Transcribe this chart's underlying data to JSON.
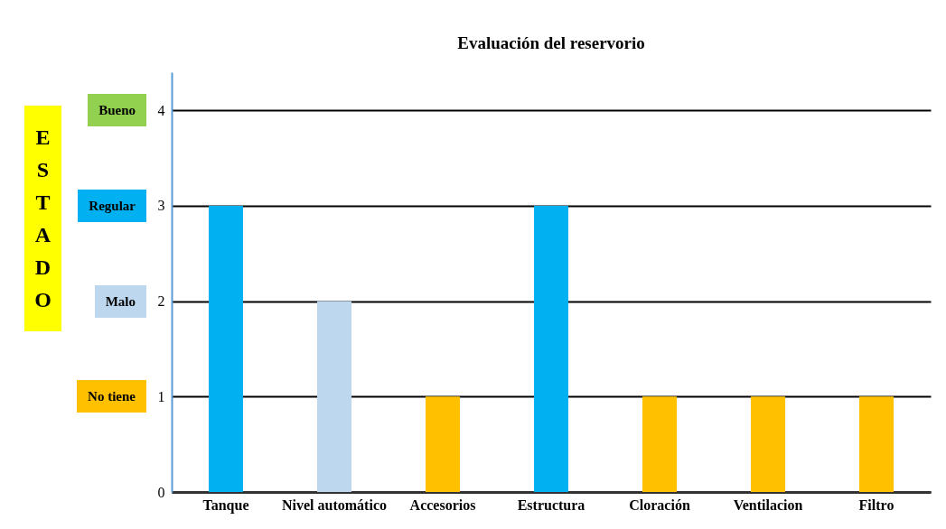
{
  "chart_data": {
    "type": "bar",
    "title": "Evaluación del reservorio",
    "ylabel": "ESTADO",
    "categories": [
      "Tanque",
      "Nivel automático",
      "Accesorios",
      "Estructura",
      "Cloración",
      "Ventilacion",
      "Filtro"
    ],
    "values": [
      3,
      2,
      1,
      3,
      1,
      1,
      1
    ],
    "colors": [
      "#00b0f0",
      "#bdd7ee",
      "#ffc000",
      "#00b0f0",
      "#ffc000",
      "#ffc000",
      "#ffc000"
    ],
    "ylim": [
      0,
      4.4
    ],
    "yticks": [
      0,
      1,
      2,
      3,
      4
    ],
    "grid": "y",
    "annotations": [
      "Bueno",
      "Regular",
      "Malo",
      "No tiene"
    ]
  }
}
